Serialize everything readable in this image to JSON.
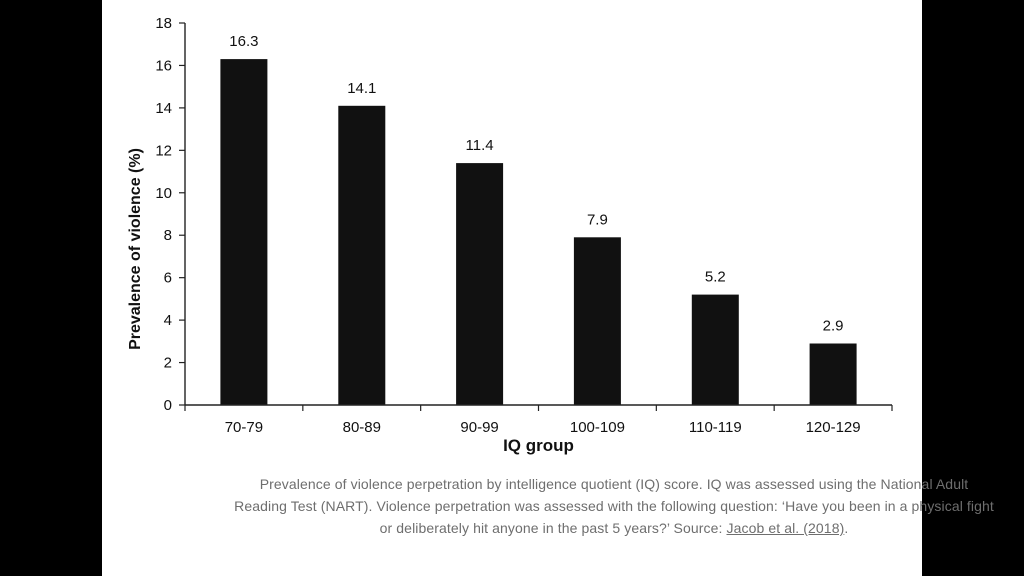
{
  "chart_data": {
    "type": "bar",
    "categories": [
      "70-79",
      "80-89",
      "90-99",
      "100-109",
      "110-119",
      "120-129"
    ],
    "values": [
      16.3,
      14.1,
      11.4,
      7.9,
      5.2,
      2.9
    ],
    "data_labels": [
      "16.3",
      "14.1",
      "11.4",
      "7.9",
      "5.2",
      "2.9"
    ],
    "xlabel": "IQ group",
    "ylabel": "Prevalence of violence (%)",
    "ylim": [
      0,
      18
    ],
    "yticks": [
      0,
      2,
      4,
      6,
      8,
      10,
      12,
      14,
      16,
      18
    ],
    "bar_color": "#111111",
    "grid": false,
    "legend": "none"
  },
  "caption": {
    "text": "Prevalence of violence perpetration by intelligence quotient (IQ) score. IQ was assessed using the National Adult Reading Test (NART). Violence perpetration was assessed with the following question: ‘Have you been in a physical fight or deliberately hit anyone in the past 5 years?’ Source: ",
    "link_text": "Jacob et al. (2018)",
    "end": "."
  }
}
